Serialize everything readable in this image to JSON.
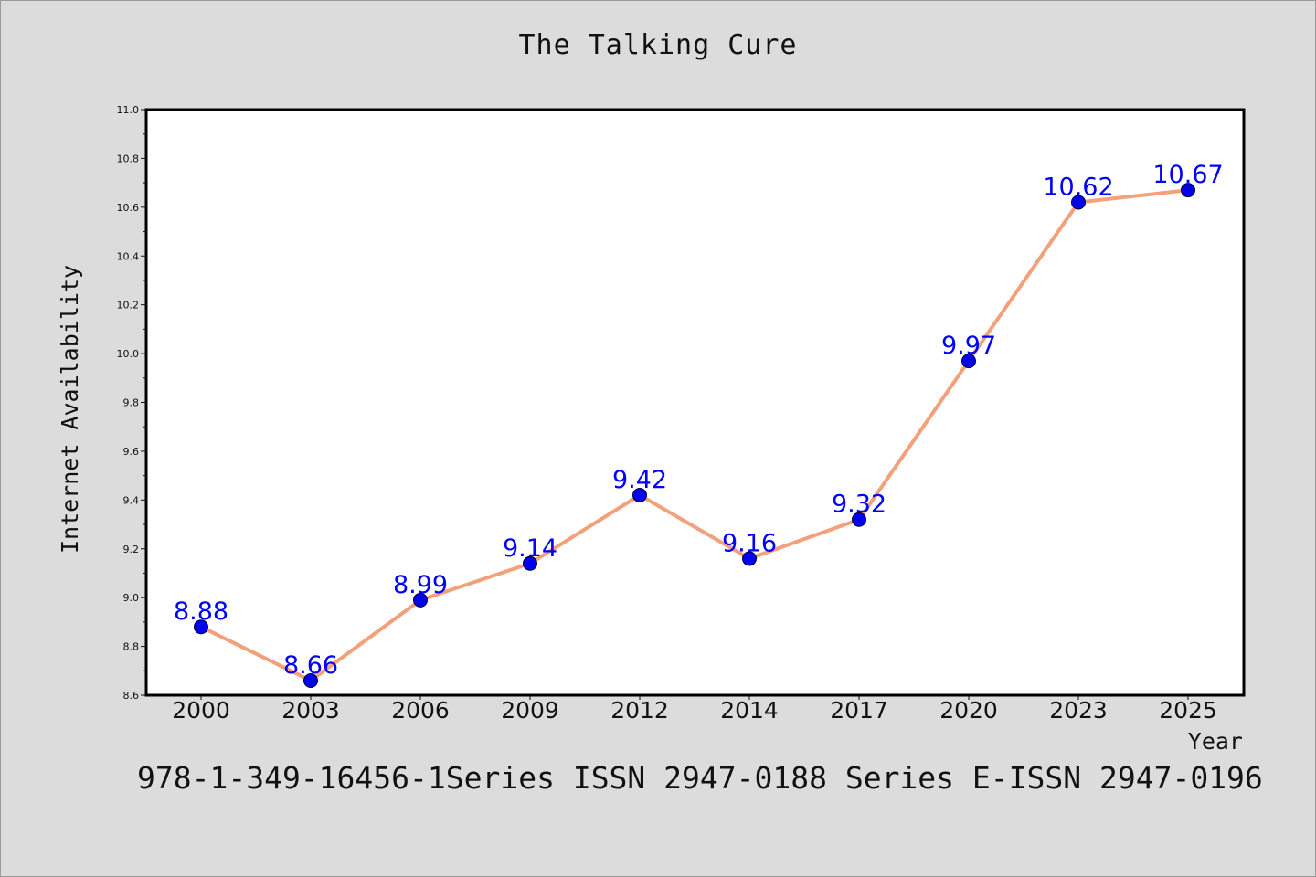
{
  "chart_data": {
    "type": "line",
    "title": "The Talking Cure",
    "xlabel": "Year",
    "ylabel": "Internet Availability",
    "categories": [
      "2000",
      "2003",
      "2006",
      "2009",
      "2012",
      "2014",
      "2017",
      "2020",
      "2023",
      "2025"
    ],
    "series": [
      {
        "values": [
          8.88,
          8.66,
          8.99,
          9.14,
          9.42,
          9.16,
          9.32,
          9.97,
          10.62,
          10.67
        ],
        "line_color": "#f4a07a",
        "marker_color": "#0000ee"
      }
    ],
    "data_labels": [
      "8.88",
      "8.66",
      "8.99",
      "9.14",
      "9.42",
      "9.16",
      "9.32",
      "9.97",
      "10.62",
      "10.67"
    ],
    "ylim": [
      8.6,
      11.0
    ],
    "y_ticks": [
      "8.6",
      "8.8",
      "9.0",
      "9.2",
      "9.4",
      "9.6",
      "9.8",
      "10.0",
      "10.2",
      "10.4",
      "10.6",
      "10.8",
      "11.0"
    ],
    "grid": false,
    "legend": "none",
    "data_label_color": "#0000ff"
  },
  "footer": {
    "text": "978-1-349-16456-1Series ISSN 2947-0188 Series E-ISSN 2947-0196"
  }
}
